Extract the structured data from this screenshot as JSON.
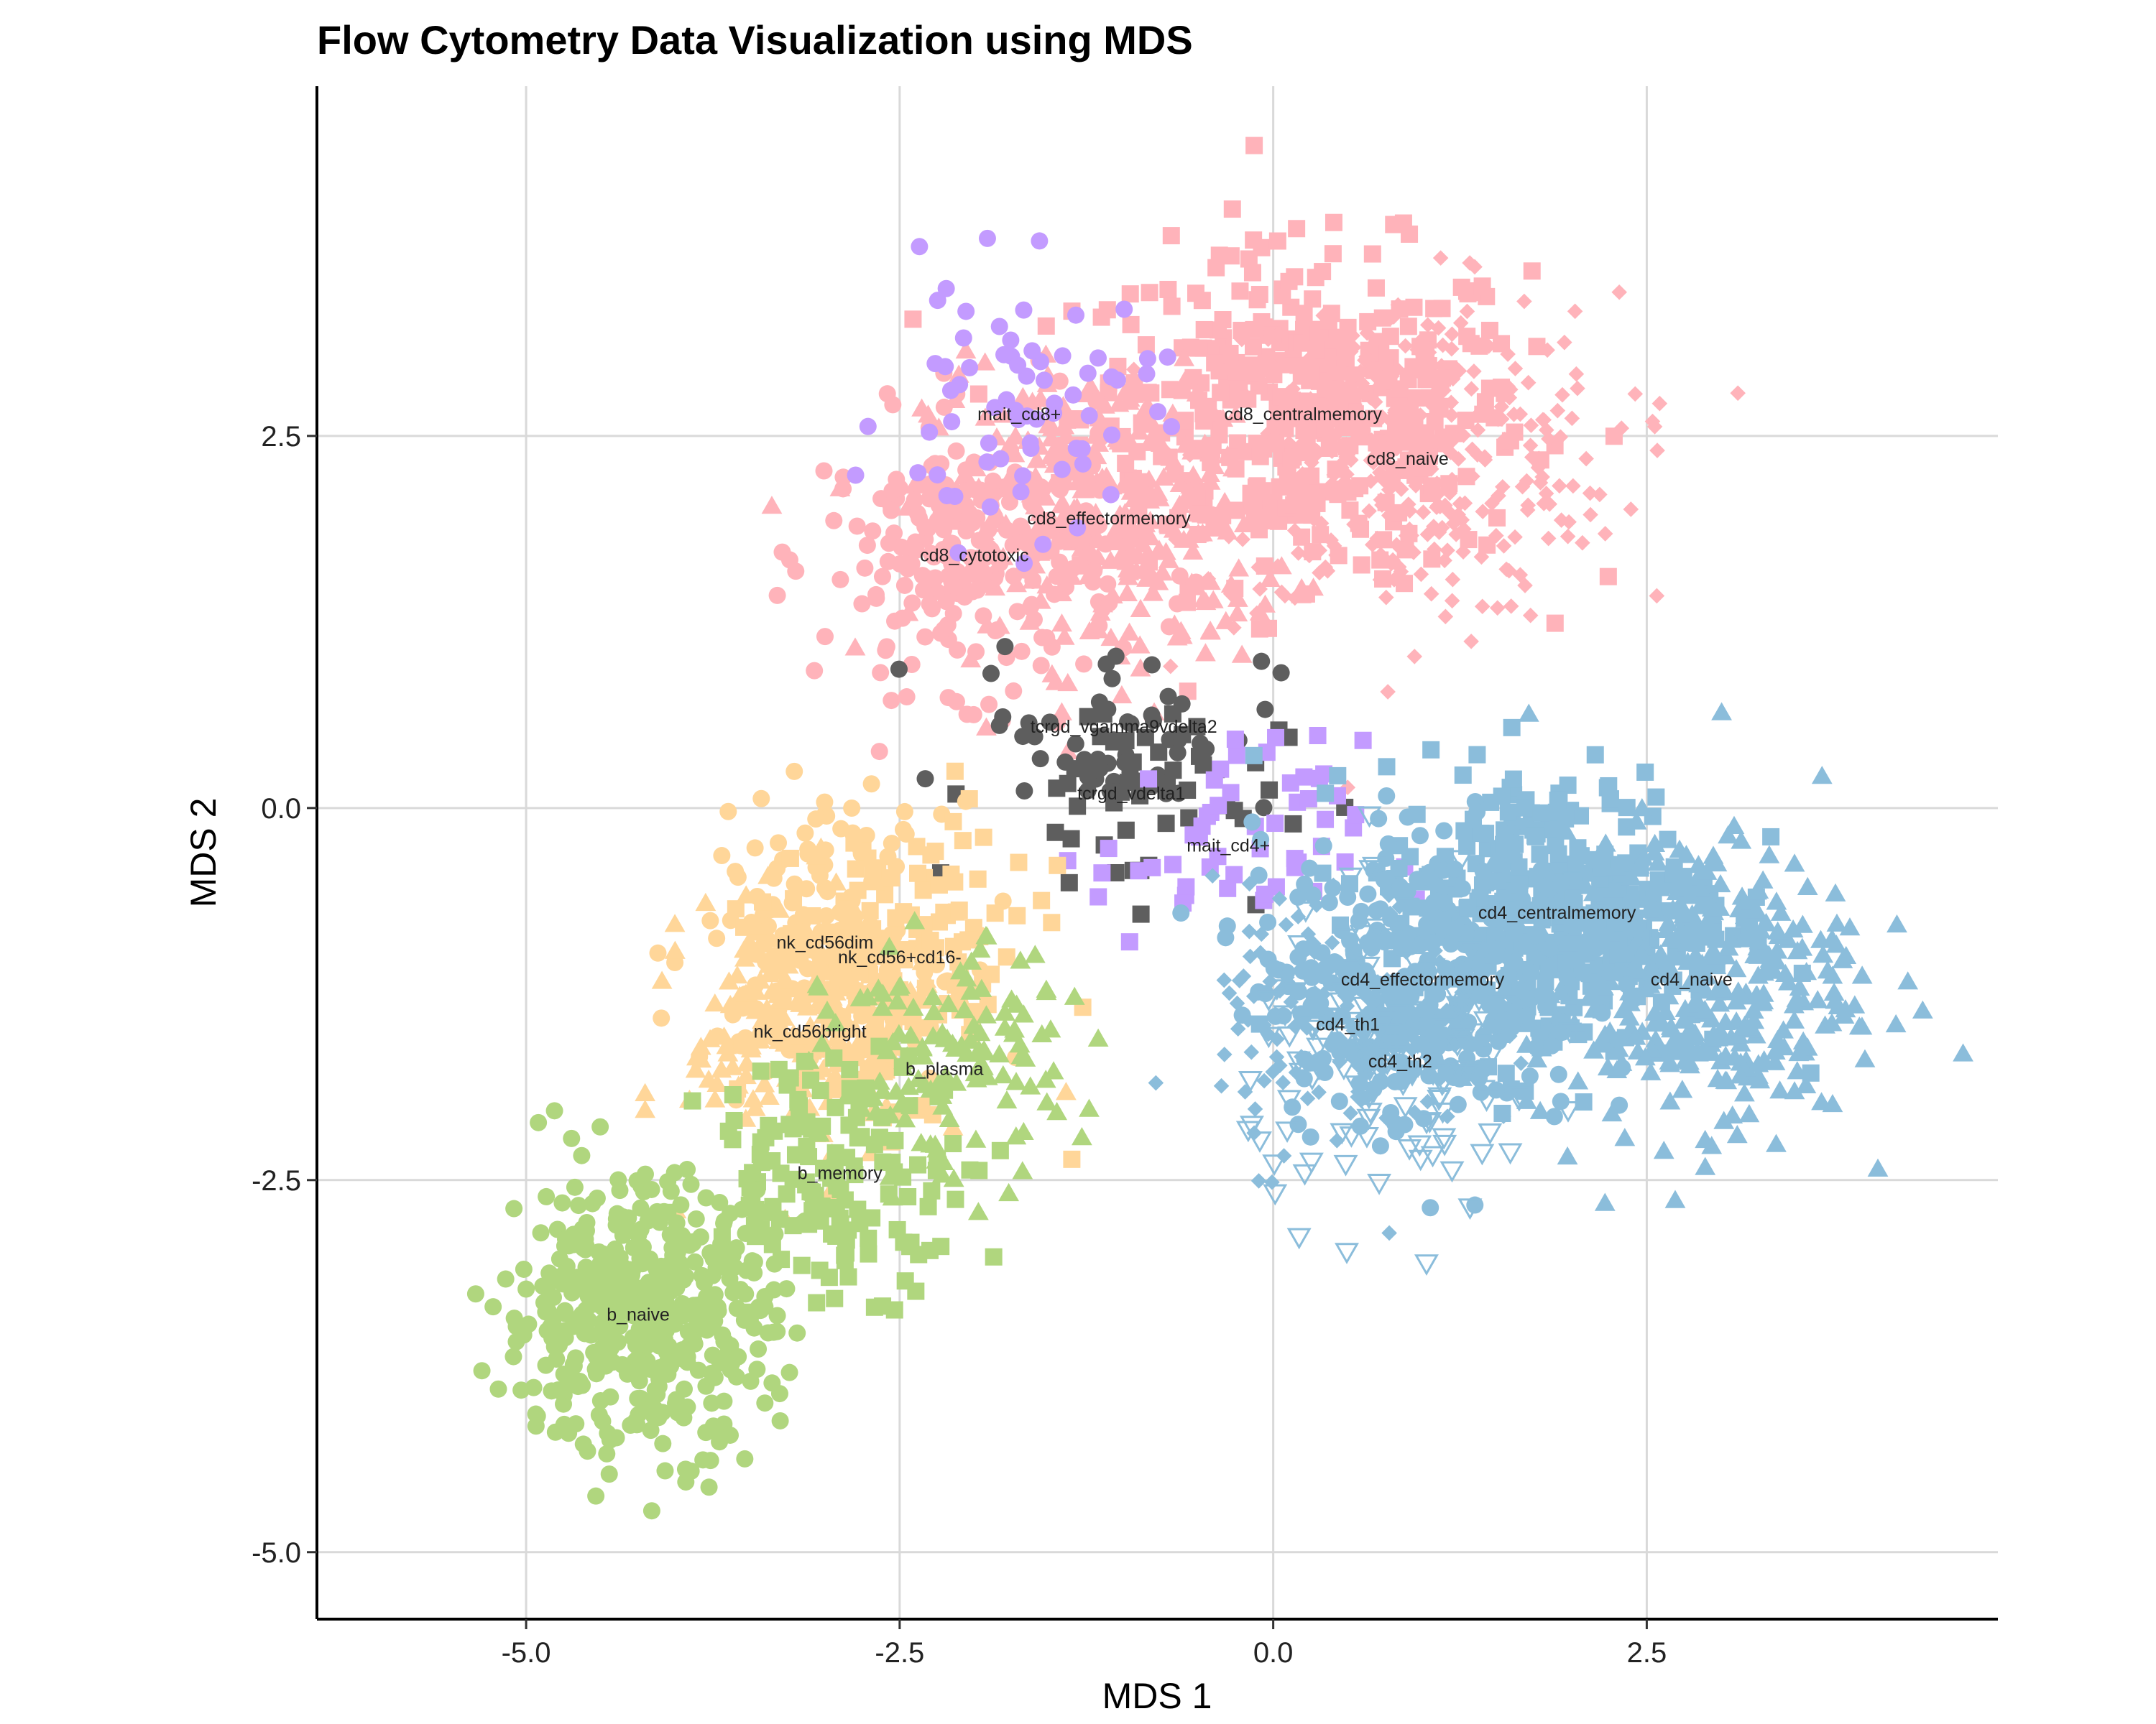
{
  "chart_data": {
    "type": "scatter",
    "title": "Flow Cytometry Data Visualization using MDS",
    "xlabel": "MDS 1",
    "ylabel": "MDS 2",
    "xlim": [
      -6.4,
      4.85
    ],
    "ylim": [
      -5.45,
      4.85
    ],
    "xticks": [
      -5.0,
      -2.5,
      0.0,
      2.5
    ],
    "yticks": [
      -5.0,
      -2.5,
      0.0,
      2.5
    ],
    "xtick_labels": [
      "-5.0",
      "-2.5",
      "0.0",
      "2.5"
    ],
    "ytick_labels": [
      "-5.0",
      "-2.5",
      "0.0",
      "2.5"
    ],
    "grid": true,
    "legend": "none",
    "colors": {
      "pink": "#FFB3BA",
      "purple": "#C39BFF",
      "gray": "#5E5E5E",
      "orange": "#FFD699",
      "green": "#B0D67E",
      "blue": "#8BBDDB"
    },
    "clusters": [
      {
        "label": "cd8_centralmemory",
        "x": 0.2,
        "y": 2.65,
        "sx": 0.75,
        "sy": 0.55,
        "n": 420,
        "color": "pink",
        "shape": "square"
      },
      {
        "label": "cd8_naive",
        "x": 0.9,
        "y": 2.35,
        "sx": 0.7,
        "sy": 0.55,
        "n": 360,
        "color": "pink",
        "shape": "diamond"
      },
      {
        "label": "cd8_effectormemory",
        "x": -1.1,
        "y": 1.95,
        "sx": 0.6,
        "sy": 0.5,
        "n": 300,
        "color": "pink",
        "shape": "triangle"
      },
      {
        "label": "cd8_cytotoxic",
        "x": -2.0,
        "y": 1.7,
        "sx": 0.5,
        "sy": 0.45,
        "n": 250,
        "color": "pink",
        "shape": "circle"
      },
      {
        "label": "mait_cd8+",
        "x": -1.7,
        "y": 2.65,
        "sx": 0.45,
        "sy": 0.45,
        "n": 70,
        "color": "purple",
        "shape": "circle"
      },
      {
        "label": "tcrgd_vgamma9vdelta2",
        "x": -1.0,
        "y": 0.55,
        "sx": 0.5,
        "sy": 0.3,
        "n": 55,
        "color": "gray",
        "shape": "circle"
      },
      {
        "label": "tcrgd_vdelta1",
        "x": -0.95,
        "y": 0.1,
        "sx": 0.5,
        "sy": 0.35,
        "n": 55,
        "color": "gray",
        "shape": "square"
      },
      {
        "label": "mait_cd4+",
        "x": -0.3,
        "y": -0.25,
        "sx": 0.45,
        "sy": 0.35,
        "n": 55,
        "color": "purple",
        "shape": "square"
      },
      {
        "label": "cd4_centralmemory",
        "x": 1.9,
        "y": -0.7,
        "sx": 0.6,
        "sy": 0.5,
        "n": 380,
        "color": "blue",
        "shape": "square"
      },
      {
        "label": "cd4_naive",
        "x": 2.8,
        "y": -1.15,
        "sx": 0.55,
        "sy": 0.5,
        "n": 360,
        "color": "blue",
        "shape": "triangle"
      },
      {
        "label": "cd4_effectormemory",
        "x": 1.0,
        "y": -1.15,
        "sx": 0.55,
        "sy": 0.5,
        "n": 320,
        "color": "blue",
        "shape": "circle"
      },
      {
        "label": "cd4_th1",
        "x": 0.5,
        "y": -1.45,
        "sx": 0.45,
        "sy": 0.45,
        "n": 150,
        "color": "blue",
        "shape": "diamond"
      },
      {
        "label": "cd4_th2",
        "x": 0.85,
        "y": -1.7,
        "sx": 0.5,
        "sy": 0.5,
        "n": 150,
        "color": "blue",
        "shape": "triangle-down-open"
      },
      {
        "label": "nk_cd56dim",
        "x": -3.0,
        "y": -0.9,
        "sx": 0.4,
        "sy": 0.45,
        "n": 200,
        "color": "orange",
        "shape": "circle"
      },
      {
        "label": "nk_cd56+cd16-",
        "x": -2.5,
        "y": -1.0,
        "sx": 0.45,
        "sy": 0.45,
        "n": 140,
        "color": "orange",
        "shape": "square"
      },
      {
        "label": "nk_cd56bright",
        "x": -3.1,
        "y": -1.5,
        "sx": 0.4,
        "sy": 0.45,
        "n": 200,
        "color": "orange",
        "shape": "triangle"
      },
      {
        "label": "b_plasma",
        "x": -2.2,
        "y": -1.75,
        "sx": 0.4,
        "sy": 0.4,
        "n": 130,
        "color": "green",
        "shape": "triangle"
      },
      {
        "label": "b_memory",
        "x": -2.9,
        "y": -2.45,
        "sx": 0.45,
        "sy": 0.4,
        "n": 150,
        "color": "green",
        "shape": "square"
      },
      {
        "label": "b_naive",
        "x": -4.25,
        "y": -3.4,
        "sx": 0.45,
        "sy": 0.45,
        "n": 480,
        "color": "green",
        "shape": "circle"
      }
    ]
  }
}
